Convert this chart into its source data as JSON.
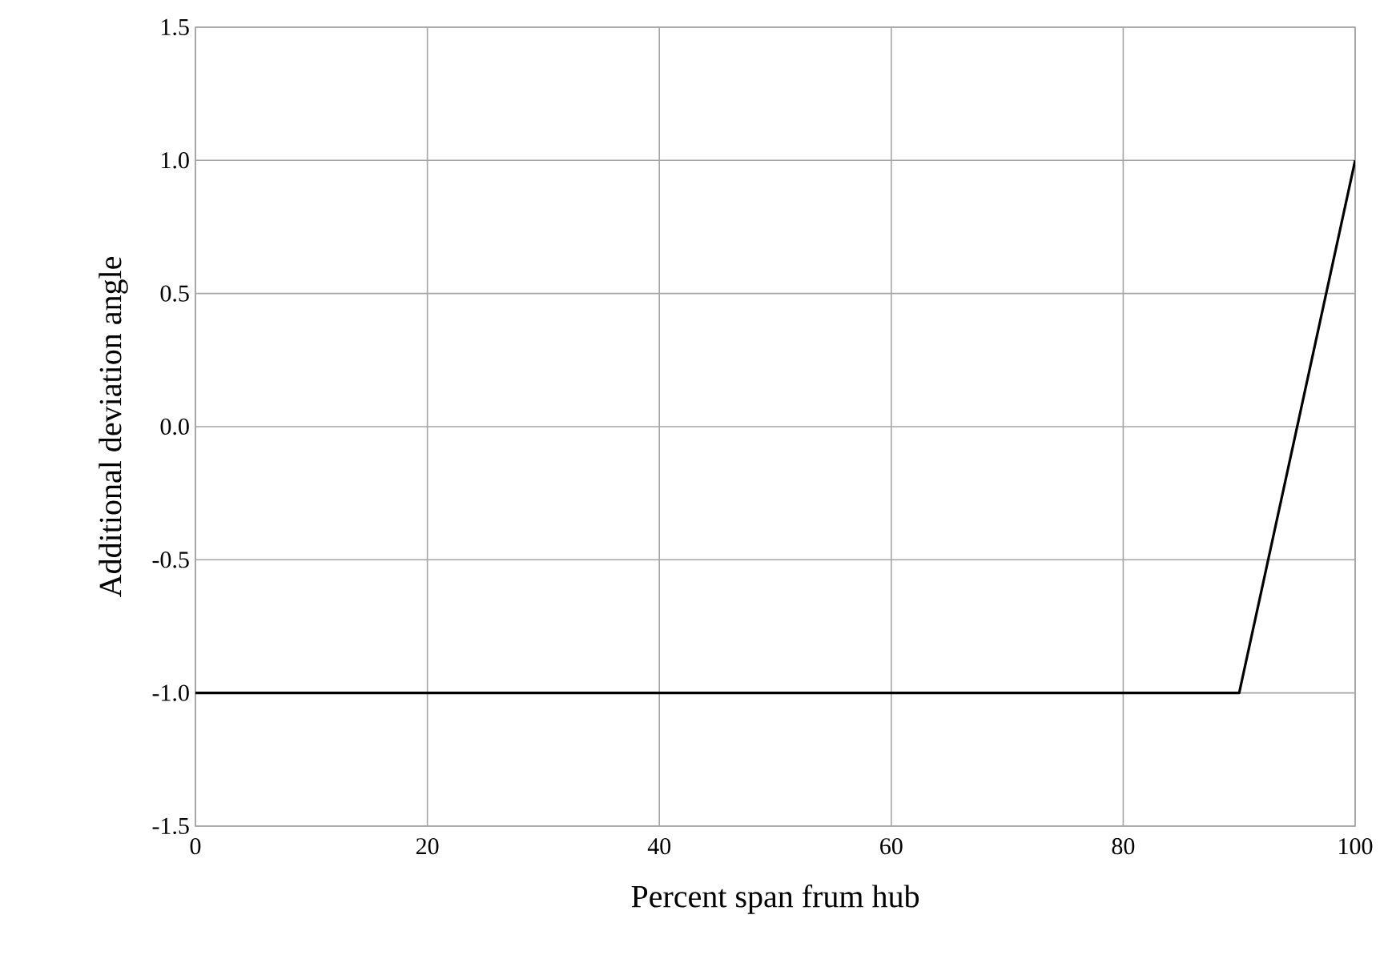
{
  "chart_data": {
    "type": "line",
    "xlabel": "Percent span frum hub",
    "ylabel": "Additional  deviation  angle",
    "x": [
      0,
      90,
      100
    ],
    "series": [
      {
        "color": "#000000",
        "values": [
          -1.0,
          -1.0,
          1.0
        ]
      }
    ],
    "xlim": [
      0,
      100
    ],
    "xticks": [
      0,
      20,
      40,
      60,
      80,
      100
    ],
    "ylim": [
      -1.5,
      1.5
    ],
    "yticks": [
      {
        "value": -1.5,
        "label": "-1.5"
      },
      {
        "value": -1.0,
        "label": "-1.0"
      },
      {
        "value": -0.5,
        "label": "-0.5"
      },
      {
        "value": 0,
        "label": "0.0"
      },
      {
        "value": 0.5,
        "label": "0.5"
      },
      {
        "value": 1.0,
        "label": "1.0"
      },
      {
        "value": 1.5,
        "label": "1.5"
      }
    ],
    "grid": true,
    "marker": "none",
    "line_style": "solid"
  }
}
